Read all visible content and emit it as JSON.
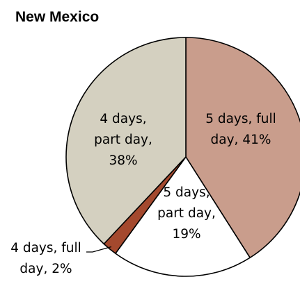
{
  "chart_data": {
    "type": "pie",
    "title": "New Mexico",
    "slices": [
      {
        "label_lines": [
          "5 days, full",
          "day, 41%"
        ],
        "value": 41,
        "color": "#c99d8c"
      },
      {
        "label_lines": [
          "5 days,",
          "part day,",
          "19%"
        ],
        "value": 19,
        "color": "#ffffff"
      },
      {
        "label_lines": [
          "4 days, full",
          "day, 2%"
        ],
        "value": 2,
        "color": "#a4492e"
      },
      {
        "label_lines": [
          "4 days,",
          "part day,",
          "38%"
        ],
        "value": 38,
        "color": "#d4d0c0"
      }
    ],
    "start_angle_deg": 0,
    "direction": "clockwise",
    "outline_color": "#000000"
  }
}
